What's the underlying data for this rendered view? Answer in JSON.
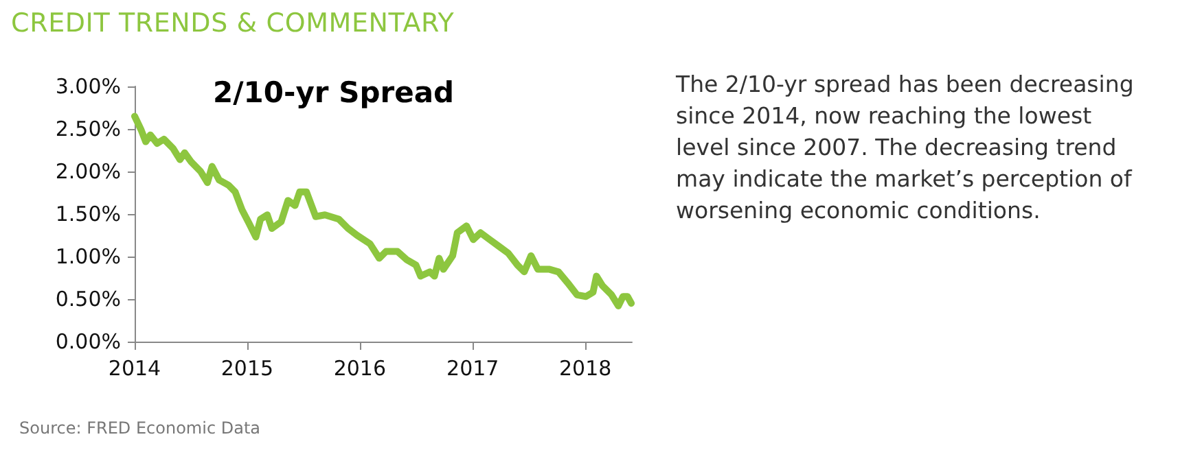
{
  "chart_data": {
    "type": "line",
    "title": "2/10-yr Spread",
    "subtitle": "CREDIT TRENDS & COMMENTARY",
    "annotations": [
      "The 2/10-yr spread has been decreasing since 2014, now reaching the lowest level since 2007.  The decreasing trend may indicate the market’s perception of worsening economic conditions.",
      "Source: FRED Economic Data"
    ],
    "x": [
      "2014-01-01",
      "2014-01-22",
      "2014-02-06",
      "2014-02-21",
      "2014-03-15",
      "2014-04-06",
      "2014-05-06",
      "2014-05-28",
      "2014-06-12",
      "2014-07-04",
      "2014-08-03",
      "2014-08-25",
      "2014-09-09",
      "2014-10-02",
      "2014-11-01",
      "2014-11-23",
      "2014-12-15",
      "2015-01-07",
      "2015-01-29",
      "2015-02-13",
      "2015-03-07",
      "2015-03-22",
      "2015-04-21",
      "2015-05-13",
      "2015-06-05",
      "2015-06-20",
      "2015-07-12",
      "2015-08-11",
      "2015-09-10",
      "2015-10-25",
      "2015-11-24",
      "2015-12-23",
      "2016-02-03",
      "2016-03-04",
      "2016-03-26",
      "2016-05-02",
      "2016-06-02",
      "2016-07-01",
      "2016-07-16",
      "2016-08-15",
      "2016-08-30",
      "2016-09-14",
      "2016-09-28",
      "2016-10-28",
      "2016-11-12",
      "2016-12-12",
      "2017-01-03",
      "2017-01-26",
      "2017-02-25",
      "2017-03-27",
      "2017-04-26",
      "2017-05-26",
      "2017-06-17",
      "2017-07-09",
      "2017-07-31",
      "2017-09-07",
      "2017-10-06",
      "2017-11-05",
      "2017-12-05",
      "2018-01-03",
      "2018-01-26",
      "2018-02-06",
      "2018-02-25",
      "2018-03-27",
      "2018-04-18",
      "2018-05-03",
      "2018-05-18",
      "2018-05-30"
    ],
    "series": [
      {
        "color": "#8dc63f",
        "values": [
          2.65,
          2.49,
          2.35,
          2.43,
          2.33,
          2.38,
          2.27,
          2.14,
          2.22,
          2.11,
          2.0,
          1.87,
          2.06,
          1.9,
          1.84,
          1.76,
          1.55,
          1.39,
          1.23,
          1.44,
          1.49,
          1.33,
          1.41,
          1.66,
          1.6,
          1.76,
          1.76,
          1.47,
          1.49,
          1.44,
          1.33,
          1.25,
          1.15,
          0.98,
          1.06,
          1.06,
          0.96,
          0.9,
          0.77,
          0.82,
          0.77,
          0.98,
          0.85,
          1.01,
          1.28,
          1.36,
          1.2,
          1.28,
          1.2,
          1.12,
          1.04,
          0.9,
          0.82,
          1.01,
          0.85,
          0.85,
          0.82,
          0.69,
          0.55,
          0.53,
          0.58,
          0.77,
          0.66,
          0.55,
          0.42,
          0.53,
          0.53,
          0.45
        ]
      }
    ],
    "xlim": [
      "2014-01-01",
      "2018-06-01"
    ],
    "xticks": [
      {
        "value": "2014-01-01",
        "label": "2014"
      },
      {
        "value": "2015-01-01",
        "label": "2015"
      },
      {
        "value": "2016-01-01",
        "label": "2016"
      },
      {
        "value": "2017-01-01",
        "label": "2017"
      },
      {
        "value": "2018-01-01",
        "label": "2018"
      }
    ],
    "ylim": [
      0,
      3
    ],
    "yticks": [
      {
        "value": 0,
        "label": "0.00%"
      },
      {
        "value": 0.5,
        "label": "0.50%"
      },
      {
        "value": 1,
        "label": "1.00%"
      },
      {
        "value": 1.5,
        "label": "1.50%"
      },
      {
        "value": 2,
        "label": "2.00%"
      },
      {
        "value": 2.5,
        "label": "2.50%"
      },
      {
        "value": 3,
        "label": "3.00%"
      }
    ],
    "grid": false,
    "marker": "none",
    "line_style": "solid"
  }
}
